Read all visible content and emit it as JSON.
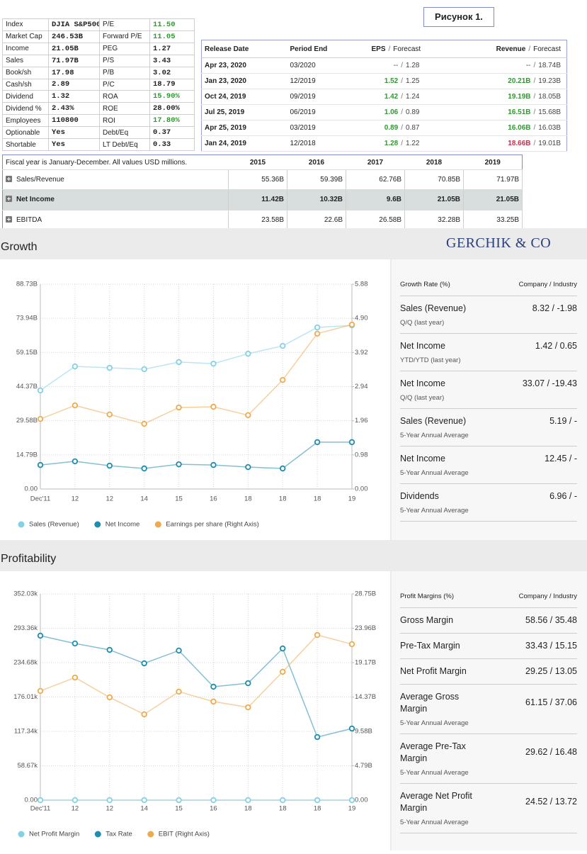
{
  "figure_label": "Рисунок 1.",
  "brand": "GERCHIK & CO",
  "stats_table": {
    "rows": [
      {
        "cells": [
          "Index",
          "DJIA S&P500",
          "P/E",
          "11.50"
        ],
        "color": "#2f9a2f"
      },
      {
        "cells": [
          "Market Cap",
          "246.53B",
          "Forward P/E",
          "11.05"
        ],
        "color": "#2f9a2f"
      },
      {
        "cells": [
          "Income",
          "21.05B",
          "PEG",
          "1.27"
        ]
      },
      {
        "cells": [
          "Sales",
          "71.97B",
          "P/S",
          "3.43"
        ]
      },
      {
        "cells": [
          "Book/sh",
          "17.98",
          "P/B",
          "3.02"
        ]
      },
      {
        "cells": [
          "Cash/sh",
          "2.89",
          "P/C",
          "18.79"
        ]
      },
      {
        "cells": [
          "Dividend",
          "1.32",
          "ROA",
          "15.90%"
        ],
        "color": "#2f9a2f"
      },
      {
        "cells": [
          "Dividend %",
          "2.43%",
          "ROE",
          "28.00%"
        ]
      },
      {
        "cells": [
          "Employees",
          "110800",
          "ROI",
          "17.80%"
        ],
        "color": "#2f9a2f"
      },
      {
        "cells": [
          "Optionable",
          "Yes",
          "Debt/Eq",
          "0.37"
        ]
      },
      {
        "cells": [
          "Shortable",
          "Yes",
          "LT Debt/Eq",
          "0.33"
        ]
      }
    ]
  },
  "earnings_table": {
    "headers": {
      "release_date": "Release Date",
      "period_end": "Period End",
      "eps": "EPS",
      "revenue": "Revenue",
      "forecast": "Forecast"
    },
    "separator": "/",
    "rows": [
      {
        "release_date": "Apr 23, 2020",
        "period_end": "03/2020",
        "eps": "--",
        "eps_forecast": "1.28",
        "revenue": "--",
        "revenue_forecast": "18.74B"
      },
      {
        "release_date": "Jan 23, 2020",
        "period_end": "12/2019",
        "eps": "1.52",
        "eps_forecast": "1.25",
        "revenue": "20.21B",
        "revenue_forecast": "19.23B",
        "eps_color": "#2f9a2f",
        "revenue_color": "#2f9a2f"
      },
      {
        "release_date": "Oct 24, 2019",
        "period_end": "09/2019",
        "eps": "1.42",
        "eps_forecast": "1.24",
        "revenue": "19.19B",
        "revenue_forecast": "18.05B",
        "eps_color": "#2f9a2f",
        "revenue_color": "#2f9a2f"
      },
      {
        "release_date": "Jul 25, 2019",
        "period_end": "06/2019",
        "eps": "1.06",
        "eps_forecast": "0.89",
        "revenue": "16.51B",
        "revenue_forecast": "15.68B",
        "eps_color": "#2f9a2f",
        "revenue_color": "#2f9a2f"
      },
      {
        "release_date": "Apr 25, 2019",
        "period_end": "03/2019",
        "eps": "0.89",
        "eps_forecast": "0.87",
        "revenue": "16.06B",
        "revenue_forecast": "16.03B",
        "eps_color": "#2f9a2f",
        "revenue_color": "#2f9a2f"
      },
      {
        "release_date": "Jan 24, 2019",
        "period_end": "12/2018",
        "eps": "1.28",
        "eps_forecast": "1.22",
        "revenue": "18.66B",
        "revenue_forecast": "19.01B",
        "eps_color": "#2f9a2f",
        "revenue_color": "#c4304c"
      }
    ]
  },
  "financials_table": {
    "note": "Fiscal year is January-December. All values USD millions.",
    "years": [
      "2015",
      "2016",
      "2017",
      "2018",
      "2019"
    ],
    "rows": [
      {
        "label": "Sales/Revenue",
        "values": [
          "55.36B",
          "59.39B",
          "62.76B",
          "70.85B",
          "71.97B"
        ]
      },
      {
        "label": "Net Income",
        "values": [
          "11.42B",
          "10.32B",
          "9.6B",
          "21.05B",
          "21.05B"
        ],
        "highlight": true
      },
      {
        "label": "EBITDA",
        "values": [
          "23.58B",
          "22.6B",
          "26.58B",
          "32.28B",
          "33.25B"
        ]
      }
    ]
  },
  "chart_data": [
    {
      "type": "line",
      "title": "Growth",
      "categories": [
        "Dec'11",
        "12",
        "12",
        "14",
        "15",
        "16",
        "18",
        "18",
        "18",
        "19"
      ],
      "ylim": [
        0,
        88.73
      ],
      "yticks": [
        {
          "value": 0,
          "label": "0.00"
        },
        {
          "value": 14.79,
          "label": "14.79B"
        },
        {
          "value": 29.58,
          "label": "29.58B"
        },
        {
          "value": 44.37,
          "label": "44.37B"
        },
        {
          "value": 59.15,
          "label": "59.15B"
        },
        {
          "value": 73.94,
          "label": "73.94B"
        },
        {
          "value": 88.73,
          "label": "88.73B"
        }
      ],
      "y2lim": [
        0,
        5.88
      ],
      "y2ticks": [
        {
          "value": 0,
          "label": "0.00"
        },
        0.98,
        1.96,
        2.94,
        3.92,
        {
          "value": 4.9,
          "label": "4.90"
        },
        5.88
      ],
      "grid": true,
      "series": [
        {
          "name": "Sales (Revenue)",
          "color": "#86d0e6",
          "values": [
            42.7,
            53.1,
            52.5,
            51.9,
            55.0,
            54.3,
            58.6,
            62.0,
            70.0,
            70.9
          ]
        },
        {
          "name": "Net Income",
          "color": "#1f8dad",
          "values": [
            10.4,
            12.0,
            10.1,
            8.9,
            10.7,
            10.4,
            9.5,
            8.9,
            20.3,
            20.3
          ]
        },
        {
          "name": "Earnings per share (Right Axis)",
          "color": "#eeaa4e",
          "axis": "y2",
          "values": [
            2.01,
            2.4,
            2.14,
            1.87,
            2.34,
            2.36,
            2.12,
            3.13,
            4.46,
            4.72
          ]
        }
      ],
      "panel": {
        "header": "Growth Rate (%)",
        "header_right": "Company / Industry",
        "items": [
          {
            "name": "Sales (Revenue)",
            "sub": "Q/Q (last year)",
            "value": "8.32 / -1.98"
          },
          {
            "name": "Net Income",
            "sub": "YTD/YTD (last year)",
            "value": "1.42 / 0.65"
          },
          {
            "name": "Net Income",
            "sub": "Q/Q (last year)",
            "value": "33.07 / -19.43"
          },
          {
            "name": "Sales (Revenue)",
            "sub": "5-Year Annual Average",
            "value": "5.19 / -"
          },
          {
            "name": "Net Income",
            "sub": "5-Year Annual Average",
            "value": "12.45 / -"
          },
          {
            "name": "Dividends",
            "sub": "5-Year Annual Average",
            "value": "6.96 / -"
          }
        ]
      }
    },
    {
      "type": "line",
      "title": "Profitability",
      "categories": [
        "Dec'11",
        "12",
        "12",
        "14",
        "15",
        "16",
        "18",
        "18",
        "18",
        "19"
      ],
      "ylim": [
        0,
        352.03
      ],
      "yticks": [
        {
          "value": 0,
          "label": "0.00"
        },
        {
          "value": 58.67,
          "label": "58.67k"
        },
        {
          "value": 117.34,
          "label": "117.34k"
        },
        {
          "value": 176.01,
          "label": "176.01k"
        },
        {
          "value": 234.68,
          "label": "234.68k"
        },
        {
          "value": 293.36,
          "label": "293.36k"
        },
        {
          "value": 352.03,
          "label": "352.03k"
        }
      ],
      "y2lim": [
        0,
        28.75
      ],
      "y2ticks": [
        {
          "value": 0,
          "label": "0.00"
        },
        {
          "value": 4.79,
          "label": "4.79B"
        },
        {
          "value": 9.58,
          "label": "9.58B"
        },
        {
          "value": 14.37,
          "label": "14.37B"
        },
        {
          "value": 19.17,
          "label": "19.17B"
        },
        {
          "value": 23.96,
          "label": "23.96B"
        },
        {
          "value": 28.75,
          "label": "28.75B"
        }
      ],
      "grid": true,
      "series": [
        {
          "name": "Net Profit Margin",
          "color": "#86d0e6",
          "values": [
            0,
            0,
            0,
            0,
            0,
            0,
            0,
            0,
            0,
            0
          ]
        },
        {
          "name": "Tax Rate",
          "color": "#1f8dad",
          "values": [
            280.7,
            267.4,
            256.5,
            233.5,
            255.3,
            193.6,
            199.6,
            258.9,
            107.7,
            122.2
          ]
        },
        {
          "name": "EBIT (Right Axis)",
          "color": "#eeaa4e",
          "axis": "y2",
          "values": [
            15.22,
            17.09,
            14.33,
            11.96,
            15.12,
            13.74,
            12.94,
            17.89,
            23.02,
            21.74
          ]
        }
      ],
      "panel": {
        "header": "Profit Margins (%)",
        "header_right": "Company / Industry",
        "items": [
          {
            "name": "Gross Margin",
            "value": "58.56 / 35.48"
          },
          {
            "name": "Pre-Tax Margin",
            "value": "33.43 / 15.15"
          },
          {
            "name": "Net Profit Margin",
            "value": "29.25 / 13.05"
          },
          {
            "name": "Average Gross Margin",
            "sub": "5-Year Annual Average",
            "value": "61.15 / 37.06"
          },
          {
            "name": "Average Pre-Tax Margin",
            "sub": "5-Year Annual Average",
            "value": "29.62 / 16.48"
          },
          {
            "name": "Average Net Profit Margin",
            "sub": "5-Year Annual Average",
            "value": "24.52 / 13.72"
          }
        ]
      }
    }
  ]
}
